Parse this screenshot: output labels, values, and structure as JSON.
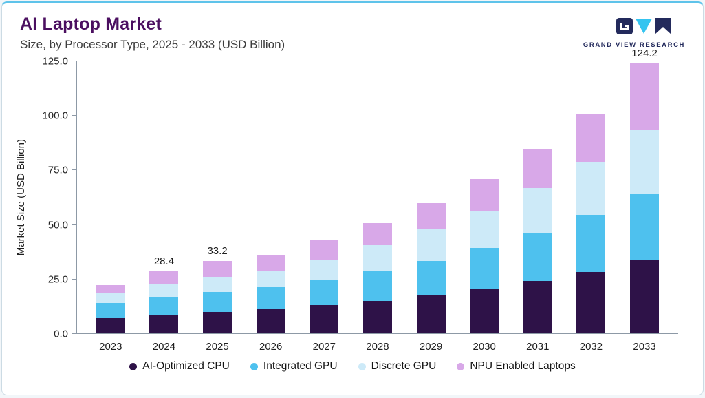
{
  "header": {
    "title": "AI Laptop Market",
    "subtitle": "Size, by Processor Type, 2025 - 2033 (USD Billion)",
    "logo_text": "GRAND VIEW RESEARCH"
  },
  "colors": {
    "accent_line": "#5ec3ea",
    "title": "#4b0f60",
    "axis": "#8d99a6",
    "logo_navy": "#232a5c",
    "logo_cyan": "#35c4f0"
  },
  "chart_data": {
    "type": "bar",
    "stacked": true,
    "title": "AI Laptop Market",
    "subtitle": "Size, by Processor Type, 2025 - 2033 (USD Billion)",
    "xlabel": "",
    "ylabel": "Market Size (USD Billion)",
    "ylim": [
      0,
      125
    ],
    "yticks": [
      0,
      25,
      50,
      75,
      100,
      125
    ],
    "ytick_labels": [
      "0.0",
      "25.0",
      "50.0",
      "75.0",
      "100.0",
      "125.0"
    ],
    "grid": false,
    "legend_position": "bottom",
    "categories": [
      "2023",
      "2024",
      "2025",
      "2026",
      "2027",
      "2028",
      "2029",
      "2030",
      "2031",
      "2032",
      "2033"
    ],
    "series": [
      {
        "name": "AI-Optimized CPU",
        "color": "#2e1248",
        "values": [
          7.0,
          8.5,
          9.8,
          11.0,
          13.0,
          15.0,
          17.5,
          20.5,
          24.0,
          28.2,
          33.5
        ]
      },
      {
        "name": "Integrated GPU",
        "color": "#4ec1ee",
        "values": [
          6.9,
          8.0,
          9.2,
          10.2,
          11.5,
          13.5,
          15.8,
          18.8,
          22.3,
          26.3,
          30.5
        ]
      },
      {
        "name": "Discrete GPU",
        "color": "#cdeaf8",
        "values": [
          4.6,
          6.0,
          7.0,
          7.6,
          9.0,
          12.0,
          14.5,
          17.0,
          20.5,
          24.3,
          29.5
        ]
      },
      {
        "name": "NPU Enabled Laptops",
        "color": "#d8a8e8",
        "values": [
          3.7,
          5.9,
          7.2,
          7.3,
          9.2,
          10.1,
          12.0,
          14.6,
          17.7,
          22.0,
          30.7
        ]
      }
    ],
    "bar_total_labels": [
      "",
      "28.4",
      "33.2",
      "",
      "",
      "",
      "",
      "",
      "",
      "",
      "124.2"
    ]
  }
}
